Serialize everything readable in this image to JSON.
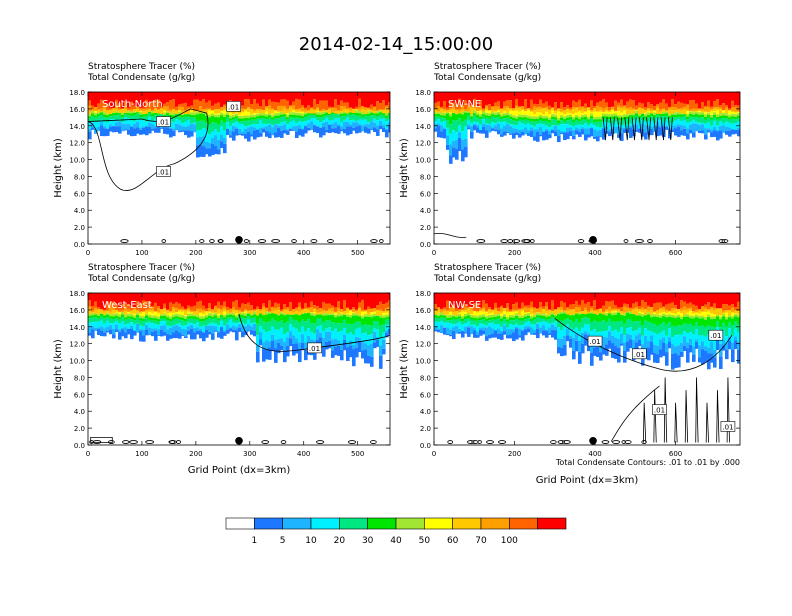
{
  "title": "2014-02-14_15:00:00",
  "panel_header": {
    "line1": "Stratosphere Tracer   (%)",
    "line2": "Total Condensate   (g/kg)"
  },
  "footnote": "Total Condensate Contours: .01 to .01 by .000",
  "ylabel": "Height (km)",
  "xlabel": "Grid Point (dx=3km)",
  "contour_label": ".01",
  "chart_data": [
    {
      "type": "heatmap",
      "name": "South-North",
      "xlim": [
        0,
        560
      ],
      "ylim": [
        0,
        18
      ],
      "xticks": [
        0,
        100,
        200,
        300,
        400,
        500
      ],
      "yticks": [
        "0.0",
        "2.0",
        "4.0",
        "6.0",
        "8.0",
        "10.0",
        "12.0",
        "14.0",
        "16.0",
        "18.0"
      ],
      "marker_x": 280
    },
    {
      "type": "heatmap",
      "name": "SW-NE",
      "xlim": [
        0,
        760
      ],
      "ylim": [
        0,
        18
      ],
      "xticks": [
        0,
        200,
        400,
        600
      ],
      "yticks": [
        "0.0",
        "2.0",
        "4.0",
        "6.0",
        "8.0",
        "10.0",
        "12.0",
        "14.0",
        "16.0",
        "18.0"
      ],
      "marker_x": 395
    },
    {
      "type": "heatmap",
      "name": "West-East",
      "xlim": [
        0,
        560
      ],
      "ylim": [
        0,
        18
      ],
      "xticks": [
        0,
        100,
        200,
        300,
        400,
        500
      ],
      "yticks": [
        "0.0",
        "2.0",
        "4.0",
        "6.0",
        "8.0",
        "10.0",
        "12.0",
        "14.0",
        "16.0",
        "18.0"
      ],
      "marker_x": 280
    },
    {
      "type": "heatmap",
      "name": "NW-SE",
      "xlim": [
        0,
        760
      ],
      "ylim": [
        0,
        18
      ],
      "xticks": [
        0,
        200,
        400,
        600
      ],
      "yticks": [
        "0.0",
        "2.0",
        "4.0",
        "6.0",
        "8.0",
        "10.0",
        "12.0",
        "14.0",
        "16.0",
        "18.0"
      ],
      "marker_x": 395
    }
  ],
  "colorbar": {
    "labels": [
      "1",
      "5",
      "10",
      "20",
      "30",
      "40",
      "50",
      "60",
      "70",
      "100"
    ],
    "colors": [
      "#ffffff",
      "#1e78ff",
      "#1eb4ff",
      "#00f0ff",
      "#00e680",
      "#00e600",
      "#a0e632",
      "#ffff00",
      "#ffc800",
      "#ffa000",
      "#ff6400",
      "#ff0000"
    ]
  }
}
